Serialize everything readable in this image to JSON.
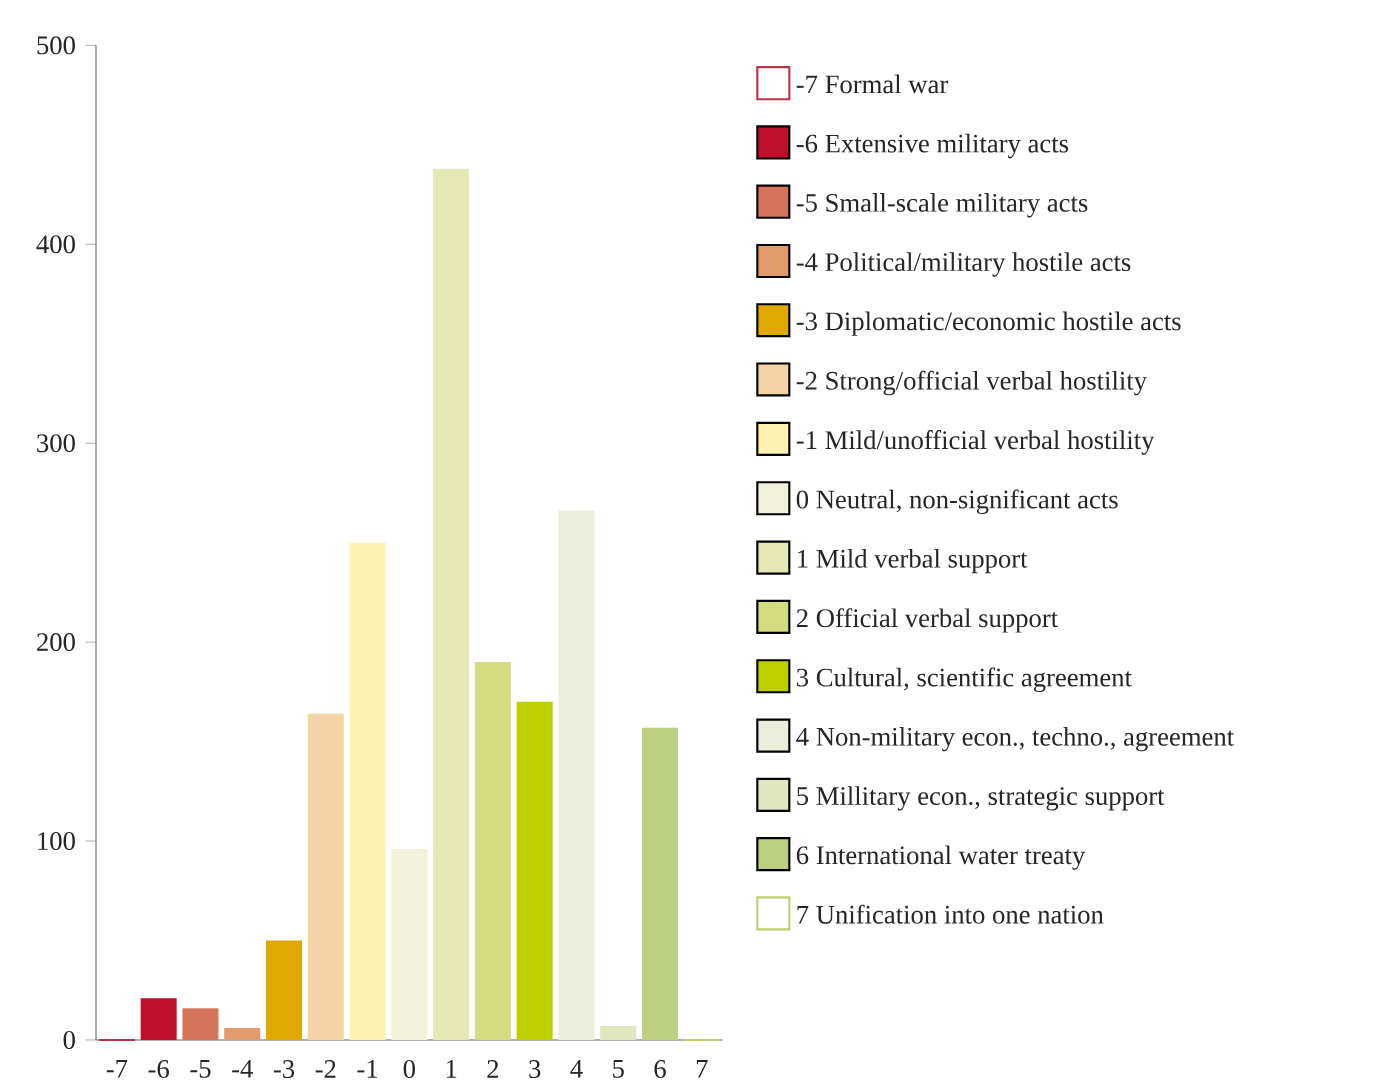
{
  "chart_data": {
    "type": "bar",
    "legend": "right",
    "categories": [
      "-7",
      "-6",
      "-5",
      "-4",
      "-3",
      "-2",
      "-1",
      "0",
      "1",
      "2",
      "3",
      "4",
      "5",
      "6",
      "7"
    ],
    "ylim": [
      0,
      500
    ],
    "yticks": [
      0,
      100,
      200,
      300,
      400,
      500
    ],
    "series": [
      {
        "name": "-7 Formal war",
        "color": "#b5364a",
        "values": [
          0,
          null,
          null,
          null,
          null,
          null,
          null,
          null,
          null,
          null,
          null,
          null,
          null,
          null,
          null
        ]
      },
      {
        "name": "-6 Extensive military acts",
        "color": "#c0102e",
        "values": [
          null,
          21,
          null,
          null,
          null,
          null,
          null,
          null,
          null,
          null,
          null,
          null,
          null,
          null,
          null
        ]
      },
      {
        "name": "-5 Small-scale military acts",
        "color": "#d4745a",
        "values": [
          null,
          null,
          16,
          null,
          null,
          null,
          null,
          null,
          null,
          null,
          null,
          null,
          null,
          null,
          null
        ]
      },
      {
        "name": "-4 Political/military hostile acts",
        "color": "#e39a6c",
        "values": [
          null,
          null,
          null,
          6,
          null,
          null,
          null,
          null,
          null,
          null,
          null,
          null,
          null,
          null,
          null
        ]
      },
      {
        "name": "-3 Diplomatic/economic hostile acts",
        "color": "#e0a800",
        "values": [
          null,
          null,
          null,
          null,
          50,
          null,
          null,
          null,
          null,
          null,
          null,
          null,
          null,
          null,
          null
        ]
      },
      {
        "name": "-2 Strong/official verbal hostility",
        "color": "#f4d4a4",
        "values": [
          null,
          null,
          null,
          null,
          null,
          164,
          null,
          null,
          null,
          null,
          null,
          null,
          null,
          null,
          null
        ]
      },
      {
        "name": "-1 Mild/unofficial verbal hostility",
        "color": "#fdf1b4",
        "values": [
          null,
          null,
          null,
          null,
          null,
          null,
          250,
          null,
          null,
          null,
          null,
          null,
          null,
          null,
          null
        ]
      },
      {
        "name": "0 Neutral, non-significant acts",
        "color": "#f1f1dc",
        "values": [
          null,
          null,
          null,
          null,
          null,
          null,
          null,
          96,
          null,
          null,
          null,
          null,
          null,
          null,
          null
        ]
      },
      {
        "name": "1 Mild verbal support",
        "color": "#e6e8b4",
        "values": [
          null,
          null,
          null,
          null,
          null,
          null,
          null,
          null,
          438,
          null,
          null,
          null,
          null,
          null,
          null
        ]
      },
      {
        "name": "2 Official verbal support",
        "color": "#d4dc80",
        "values": [
          null,
          null,
          null,
          null,
          null,
          null,
          null,
          null,
          null,
          190,
          null,
          null,
          null,
          null,
          null
        ]
      },
      {
        "name": "3 Cultural, scientific agreement",
        "color": "#bcd000",
        "values": [
          null,
          null,
          null,
          null,
          null,
          null,
          null,
          null,
          null,
          null,
          170,
          null,
          null,
          null,
          null
        ]
      },
      {
        "name": "4 Non-military econ., techno., agreement",
        "color": "#eaeed8",
        "values": [
          null,
          null,
          null,
          null,
          null,
          null,
          null,
          null,
          null,
          null,
          null,
          266,
          null,
          null,
          null
        ]
      },
      {
        "name": "5 Millitary econ., strategic support",
        "color": "#dfe6c0",
        "values": [
          null,
          null,
          null,
          null,
          null,
          null,
          null,
          null,
          null,
          null,
          null,
          null,
          7,
          null,
          null
        ]
      },
      {
        "name": "6 International water treaty",
        "color": "#bcd080",
        "values": [
          null,
          null,
          null,
          null,
          null,
          null,
          null,
          null,
          null,
          null,
          null,
          null,
          null,
          157,
          null
        ]
      },
      {
        "name": "7 Unification into one nation",
        "color": "#c0d070",
        "values": [
          null,
          null,
          null,
          null,
          null,
          null,
          null,
          null,
          null,
          null,
          null,
          null,
          null,
          null,
          0
        ]
      }
    ]
  }
}
